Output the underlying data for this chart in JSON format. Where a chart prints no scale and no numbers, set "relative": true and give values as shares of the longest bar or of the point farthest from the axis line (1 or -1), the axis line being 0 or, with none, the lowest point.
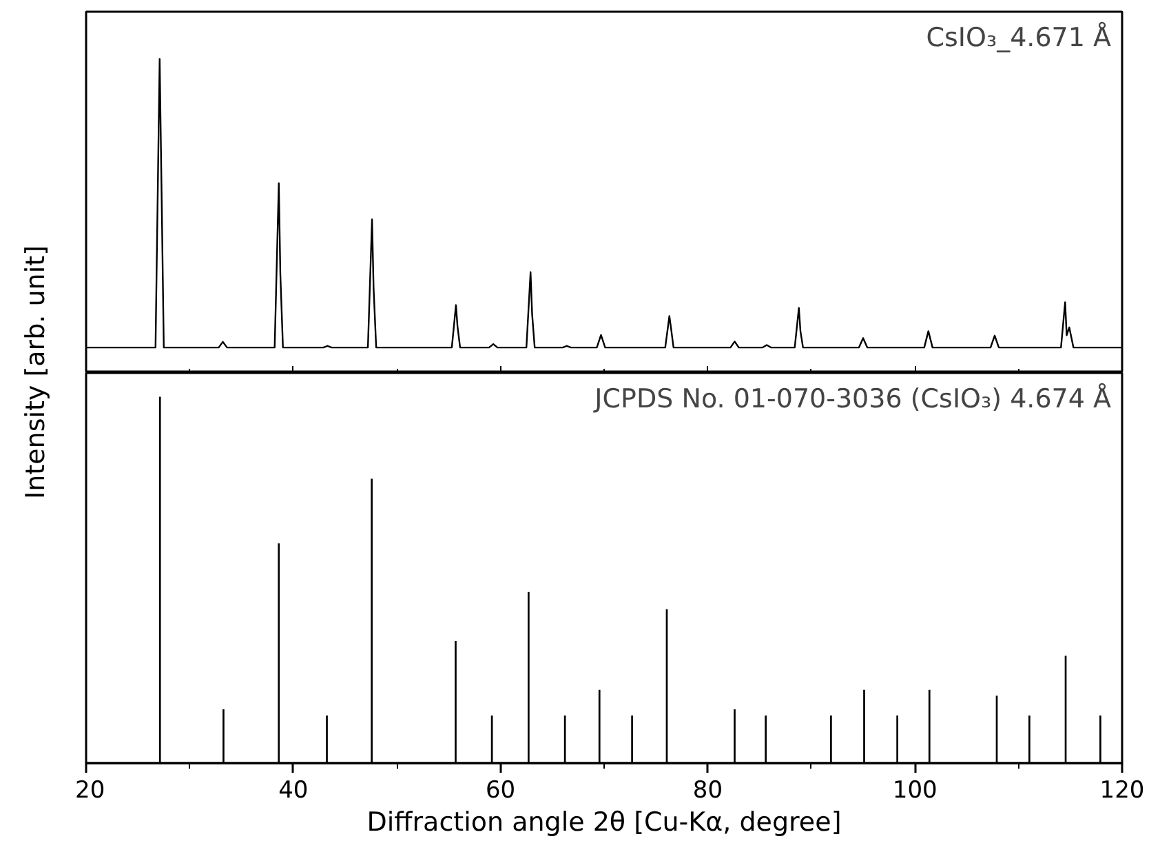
{
  "chart_data": [
    {
      "type": "line",
      "relative": true,
      "color": "#000000",
      "ylabel": "Intensity [arb. unit]",
      "tick_labels": false,
      "xlim": [
        20,
        120
      ],
      "xticks": [
        20,
        40,
        60,
        80,
        100,
        120
      ],
      "annotations": [
        "CsIO₃_4.671 Å"
      ],
      "x": [
        20,
        26.7,
        27.1,
        27.5,
        32.8,
        33.2,
        33.6,
        38.2,
        38.6,
        38.75,
        39.0,
        42.9,
        43.3,
        43.7,
        47.2,
        47.6,
        47.75,
        48.0,
        55.3,
        55.7,
        55.85,
        56.1,
        58.9,
        59.3,
        59.7,
        62.5,
        62.9,
        63.05,
        63.3,
        66.0,
        66.4,
        66.8,
        69.3,
        69.7,
        70.1,
        75.9,
        76.3,
        76.45,
        76.7,
        82.2,
        82.6,
        83.0,
        85.3,
        85.7,
        86.1,
        88.4,
        88.8,
        88.95,
        89.2,
        94.6,
        95.0,
        95.4,
        100.9,
        101.3,
        101.7,
        107.3,
        107.7,
        108.1,
        114.1,
        114.5,
        114.65,
        114.9,
        115.3,
        120
      ],
      "values": [
        0.081,
        0.081,
        1,
        0.081,
        0.081,
        0.099,
        0.081,
        0.081,
        0.604,
        0.314,
        0.081,
        0.081,
        0.086,
        0.081,
        0.081,
        0.489,
        0.27,
        0.081,
        0.081,
        0.216,
        0.148,
        0.081,
        0.081,
        0.092,
        0.081,
        0.081,
        0.321,
        0.188,
        0.081,
        0.081,
        0.086,
        0.081,
        0.081,
        0.121,
        0.081,
        0.081,
        0.181,
        0.145,
        0.081,
        0.081,
        0.1,
        0.081,
        0.081,
        0.089,
        0.081,
        0.081,
        0.207,
        0.133,
        0.081,
        0.081,
        0.111,
        0.081,
        0.081,
        0.133,
        0.081,
        0.081,
        0.119,
        0.081,
        0.081,
        0.225,
        0.12,
        0.145,
        0.081,
        0.081
      ]
    },
    {
      "type": "bar",
      "relative": true,
      "color": "#000000",
      "xlabel": "Diffraction angle 2θ [Cu-Kα, degree]",
      "tick_labels": "x",
      "xlim": [
        20,
        120
      ],
      "xticks": [
        20,
        40,
        60,
        80,
        100,
        120
      ],
      "annotations": [
        "JCPDS No. 01-070-3036 (CsIO₃) 4.674 Å"
      ],
      "x": [
        27.13,
        33.26,
        38.6,
        43.24,
        47.57,
        55.67,
        59.17,
        62.71,
        66.22,
        69.55,
        72.7,
        76.05,
        82.6,
        85.6,
        91.9,
        95.1,
        98.3,
        101.4,
        107.9,
        111.05,
        114.55,
        117.9
      ],
      "values": [
        1,
        0.147,
        0.6,
        0.13,
        0.776,
        0.333,
        0.13,
        0.467,
        0.13,
        0.2,
        0.13,
        0.42,
        0.147,
        0.13,
        0.13,
        0.2,
        0.13,
        0.2,
        0.184,
        0.13,
        0.293,
        0.13
      ]
    }
  ]
}
